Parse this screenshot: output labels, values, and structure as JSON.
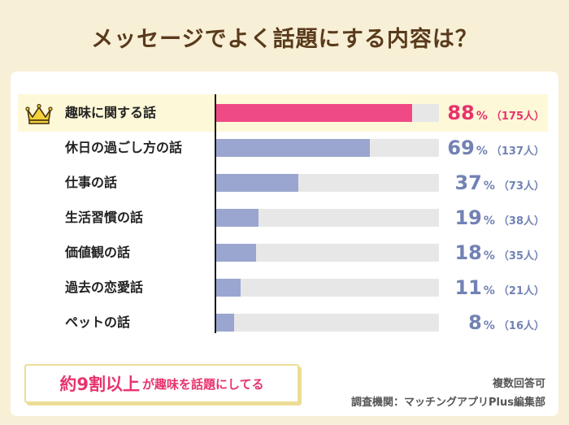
{
  "title": "メッセージでよく話題にする内容は？",
  "chart_data": {
    "type": "bar",
    "orientation": "horizontal",
    "title": "メッセージでよく話題にする内容は？",
    "categories": [
      "趣味に関する話",
      "休日の過ごし方の話",
      "仕事の話",
      "生活習慣の話",
      "価値観の話",
      "過去の恋愛話",
      "ペットの話"
    ],
    "values": [
      88,
      69,
      37,
      19,
      18,
      11,
      8
    ],
    "counts": [
      "（175人）",
      "（137人）",
      "（73人）",
      "（38人）",
      "（35人）",
      "（21人）",
      "（16人）"
    ],
    "value_unit": "%",
    "xlim": [
      0,
      100
    ],
    "highlight_index": 0,
    "colors": {
      "highlight": "#ef4a85",
      "normal": "#9aa6cf",
      "highlight_text": "#e8336d",
      "normal_text": "#7282b4",
      "track": "#e7e7e7"
    }
  },
  "callout": {
    "big": "約9割以上",
    "small": "が趣味を話題にしてる"
  },
  "notes": {
    "multiple_answer": "複数回答可",
    "source": "調査機関：マッチングアプリPlus編集部"
  }
}
